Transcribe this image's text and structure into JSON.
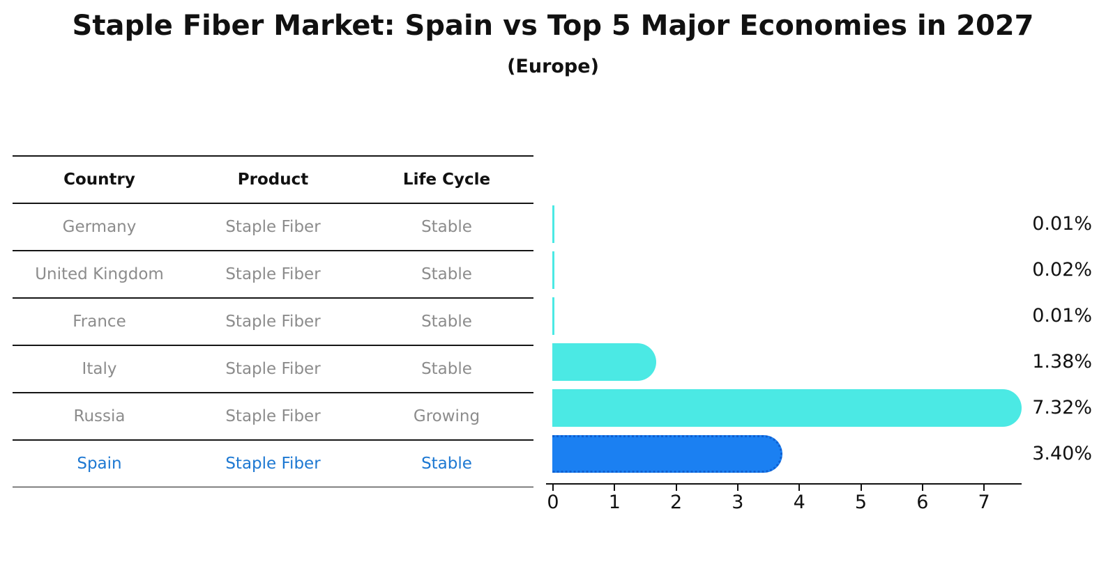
{
  "title": "Staple Fiber Market: Spain vs Top 5 Major Economies in 2027",
  "subtitle": "(Europe)",
  "table": {
    "headers": [
      "Country",
      "Product",
      "Life Cycle"
    ],
    "rows": [
      {
        "country": "Germany",
        "product": "Staple Fiber",
        "life_cycle": "Stable",
        "highlighted": false
      },
      {
        "country": "United Kingdom",
        "product": "Staple Fiber",
        "life_cycle": "Stable",
        "highlighted": false
      },
      {
        "country": "France",
        "product": "Staple Fiber",
        "life_cycle": "Stable",
        "highlighted": false
      },
      {
        "country": "Italy",
        "product": "Staple Fiber",
        "life_cycle": "Stable",
        "highlighted": false
      },
      {
        "country": "Russia",
        "product": "Staple Fiber",
        "life_cycle": "Growing",
        "highlighted": false
      },
      {
        "country": "Spain",
        "product": "Staple Fiber",
        "life_cycle": "Stable",
        "highlighted": true
      }
    ]
  },
  "chart_data": {
    "type": "bar",
    "orientation": "horizontal",
    "title": "Staple Fiber Market: Spain vs Top 5 Major Economies in 2027",
    "subtitle": "(Europe)",
    "categories": [
      "Germany",
      "United Kingdom",
      "France",
      "Italy",
      "Russia",
      "Spain"
    ],
    "values": [
      0.01,
      0.02,
      0.01,
      1.38,
      7.32,
      3.4
    ],
    "value_labels": [
      "0.01%",
      "0.02%",
      "0.01%",
      "1.38%",
      "7.32%",
      "3.40%"
    ],
    "x_ticks": [
      "0",
      "1",
      "2",
      "3",
      "4",
      "5",
      "6",
      "7"
    ],
    "xlim": [
      0,
      7.6
    ],
    "grid": false,
    "legend": false,
    "highlight_index": 5,
    "colors": {
      "bar": "#4be9e4",
      "highlight_bar": "#1b80f2",
      "highlight_border": "#0f5fd0",
      "highlight_text": "#1d78d2",
      "row_text": "#8c8c8c",
      "text": "#111111"
    }
  }
}
